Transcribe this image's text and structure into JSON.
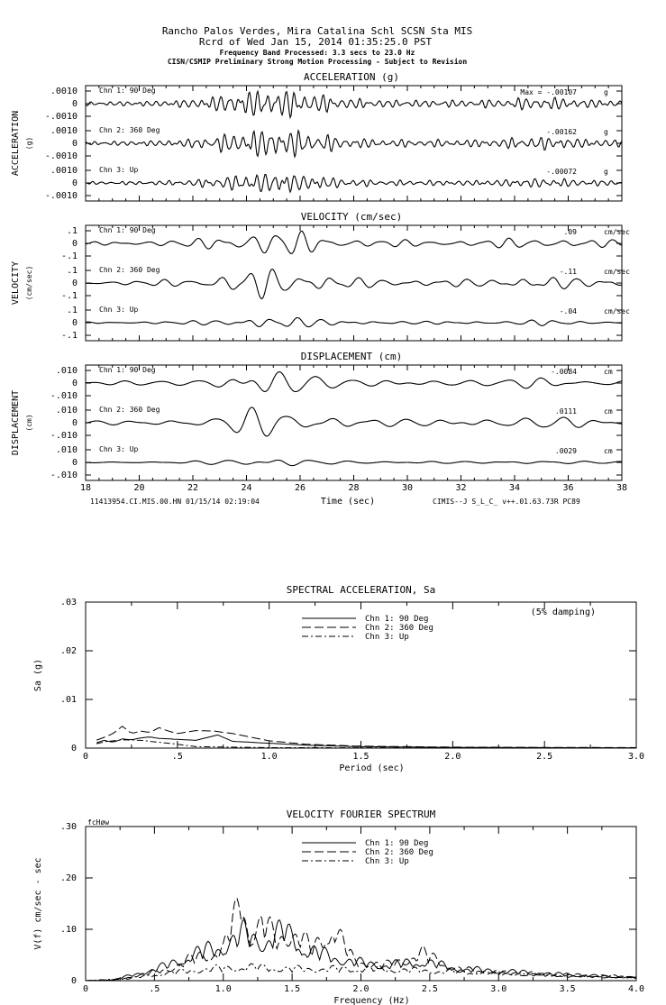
{
  "header": {
    "line1": "Rancho Palos Verdes, Mira Catalina Schl    SCSN Sta MIS",
    "line2": "Rcrd of Wed Jan 15, 2014 01:35:25.0 PST",
    "line3": "Frequency Band Processed: 3.3 secs to 23.0 Hz",
    "line4": "CISN/CSMIP Preliminary Strong Motion Processing - Subject to Revision"
  },
  "footer": {
    "left": "11413954.CI.MIS.00.HN 01/15/14 02:19:04",
    "right": "CIMIS--J  S_L_C_  v++.01.63.73R PC89"
  },
  "chart_data": [
    {
      "type": "line",
      "title": "ACCELERATION (g)",
      "ylabel": "ACCELERATION",
      "ylabel_unit": "(g)",
      "max_prefix": "Max = ",
      "xlabel": "Time (sec)",
      "xlim": [
        18,
        38
      ],
      "xticks": [
        "18",
        "20",
        "22",
        "24",
        "26",
        "28",
        "30",
        "32",
        "34",
        "36",
        "38"
      ],
      "yticks": [
        ".0010",
        "0",
        "-.0010"
      ],
      "ylim": [
        -0.001,
        0.001
      ],
      "series": [
        {
          "name": "Chn 1: 90 Deg",
          "max": "-.00107",
          "unit": "g",
          "peak": 0.00107
        },
        {
          "name": "Chn 2: 360 Deg",
          "max": "-.00162",
          "unit": "g",
          "peak": 0.00162
        },
        {
          "name": "Chn 3: Up",
          "max": "-.00072",
          "unit": "g",
          "peak": 0.00072
        }
      ]
    },
    {
      "type": "line",
      "title": "VELOCITY (cm/sec)",
      "ylabel": "VELOCITY",
      "ylabel_unit": "(cm/sec)",
      "xlim": [
        18,
        38
      ],
      "yticks": [
        ".1",
        "0",
        "-.1"
      ],
      "ylim": [
        -0.1,
        0.1
      ],
      "series": [
        {
          "name": "Chn 1: 90 Deg",
          "max": ".09",
          "unit": "cm/sec",
          "peak": 0.09
        },
        {
          "name": "Chn 2: 360 Deg",
          "max": "-.11",
          "unit": "cm/sec",
          "peak": 0.11
        },
        {
          "name": "Chn 3: Up",
          "max": "-.04",
          "unit": "cm/sec",
          "peak": 0.04
        }
      ]
    },
    {
      "type": "line",
      "title": "DISPLACEMENT (cm)",
      "ylabel": "DISPLACEMENT",
      "ylabel_unit": "(cm)",
      "xlim": [
        18,
        38
      ],
      "yticks": [
        ".010",
        "0",
        "-.010"
      ],
      "ylim": [
        -0.01,
        0.01
      ],
      "series": [
        {
          "name": "Chn 1: 90 Deg",
          "max": "-.0084",
          "unit": "cm",
          "peak": 0.0084
        },
        {
          "name": "Chn 2: 360 Deg",
          "max": ".0111",
          "unit": "cm",
          "peak": 0.0111
        },
        {
          "name": "Chn 3: Up",
          "max": ".0029",
          "unit": "cm",
          "peak": 0.0029
        }
      ]
    },
    {
      "type": "line",
      "title": "SPECTRAL ACCELERATION, Sa",
      "note": "(5% damping)",
      "xlabel": "Period (sec)",
      "ylabel": "Sa (g)",
      "xlim": [
        0,
        3.0
      ],
      "ylim": [
        0,
        0.03
      ],
      "xticks": [
        "0",
        ".5",
        "1.0",
        "1.5",
        "2.0",
        "2.5",
        "3.0"
      ],
      "yticks": [
        "0",
        ".01",
        ".02",
        ".03"
      ],
      "series": [
        {
          "name": "Chn 1: 90 Deg",
          "style": "solid",
          "points": [
            [
              0.05,
              0.001
            ],
            [
              0.1,
              0.0016
            ],
            [
              0.15,
              0.0012
            ],
            [
              0.2,
              0.0019
            ],
            [
              0.25,
              0.0017
            ],
            [
              0.3,
              0.0021
            ],
            [
              0.35,
              0.0023
            ],
            [
              0.4,
              0.002
            ],
            [
              0.5,
              0.0018
            ],
            [
              0.6,
              0.0016
            ],
            [
              0.72,
              0.0027
            ],
            [
              0.8,
              0.0014
            ],
            [
              1.0,
              0.001
            ],
            [
              1.2,
              0.0006
            ],
            [
              1.5,
              0.0003
            ],
            [
              2.0,
              0.00015
            ],
            [
              3.0,
              5e-05
            ]
          ]
        },
        {
          "name": "Chn 2: 360 Deg",
          "style": "dashed",
          "points": [
            [
              0.05,
              0.0015
            ],
            [
              0.1,
              0.0022
            ],
            [
              0.15,
              0.003
            ],
            [
              0.2,
              0.0045
            ],
            [
              0.25,
              0.003
            ],
            [
              0.3,
              0.0035
            ],
            [
              0.35,
              0.0032
            ],
            [
              0.4,
              0.0042
            ],
            [
              0.45,
              0.0035
            ],
            [
              0.5,
              0.003
            ],
            [
              0.6,
              0.0036
            ],
            [
              0.7,
              0.0035
            ],
            [
              0.8,
              0.003
            ],
            [
              1.0,
              0.0015
            ],
            [
              1.2,
              0.0008
            ],
            [
              1.5,
              0.0004
            ],
            [
              2.0,
              0.0002
            ],
            [
              3.0,
              0.0001
            ]
          ]
        },
        {
          "name": "Chn 3: Up",
          "style": "dashdot",
          "points": [
            [
              0.05,
              0.0008
            ],
            [
              0.1,
              0.0013
            ],
            [
              0.2,
              0.0017
            ],
            [
              0.3,
              0.0016
            ],
            [
              0.4,
              0.0012
            ],
            [
              0.5,
              0.0008
            ],
            [
              0.6,
              0.0003
            ],
            [
              0.8,
              0.0002
            ],
            [
              1.0,
              0.0001
            ],
            [
              2.0,
              5e-05
            ],
            [
              3.0,
              2e-05
            ]
          ]
        }
      ]
    },
    {
      "type": "line",
      "title": "VELOCITY FOURIER SPECTRUM",
      "corner_label": "fcHøw",
      "xlabel": "Frequency (Hz)",
      "ylabel": "V(f)   cm/sec - sec",
      "xlim": [
        0,
        4.0
      ],
      "ylim": [
        0,
        0.3
      ],
      "xticks": [
        "0",
        ".5",
        "1.0",
        "1.5",
        "2.0",
        "2.5",
        "3.0",
        "3.5",
        "4.0"
      ],
      "yticks": [
        "0",
        ".10",
        ".20",
        ".30"
      ],
      "series": [
        {
          "name": "Chn 1: 90 Deg",
          "style": "solid",
          "points": [
            [
              0,
              0
            ],
            [
              0.2,
              0.002
            ],
            [
              0.4,
              0.02
            ],
            [
              0.6,
              0.04
            ],
            [
              0.8,
              0.07
            ],
            [
              1.0,
              0.09
            ],
            [
              1.15,
              0.12
            ],
            [
              1.3,
              0.1
            ],
            [
              1.45,
              0.13
            ],
            [
              1.6,
              0.08
            ],
            [
              1.8,
              0.06
            ],
            [
              2.0,
              0.045
            ],
            [
              2.2,
              0.04
            ],
            [
              2.45,
              0.05
            ],
            [
              2.7,
              0.03
            ],
            [
              3.0,
              0.025
            ],
            [
              3.5,
              0.015
            ],
            [
              4.0,
              0.008
            ]
          ]
        },
        {
          "name": "Chn 2: 360 Deg",
          "style": "dashed",
          "points": [
            [
              0,
              0
            ],
            [
              0.2,
              0.002
            ],
            [
              0.4,
              0.015
            ],
            [
              0.6,
              0.03
            ],
            [
              0.8,
              0.06
            ],
            [
              1.0,
              0.08
            ],
            [
              1.13,
              0.205
            ],
            [
              1.2,
              0.12
            ],
            [
              1.28,
              0.15
            ],
            [
              1.4,
              0.1
            ],
            [
              1.5,
              0.13
            ],
            [
              1.65,
              0.08
            ],
            [
              1.8,
              0.14
            ],
            [
              1.95,
              0.05
            ],
            [
              2.2,
              0.04
            ],
            [
              2.45,
              0.07
            ],
            [
              2.7,
              0.03
            ],
            [
              3.0,
              0.02
            ],
            [
              3.5,
              0.012
            ],
            [
              4.0,
              0.008
            ]
          ]
        },
        {
          "name": "Chn 3: Up",
          "style": "dashdot",
          "points": [
            [
              0,
              0
            ],
            [
              0.3,
              0.005
            ],
            [
              0.6,
              0.02
            ],
            [
              0.9,
              0.03
            ],
            [
              1.2,
              0.035
            ],
            [
              1.5,
              0.03
            ],
            [
              1.8,
              0.03
            ],
            [
              2.1,
              0.03
            ],
            [
              2.5,
              0.025
            ],
            [
              3.0,
              0.02
            ],
            [
              3.5,
              0.015
            ],
            [
              4.0,
              0.01
            ]
          ]
        }
      ]
    }
  ]
}
